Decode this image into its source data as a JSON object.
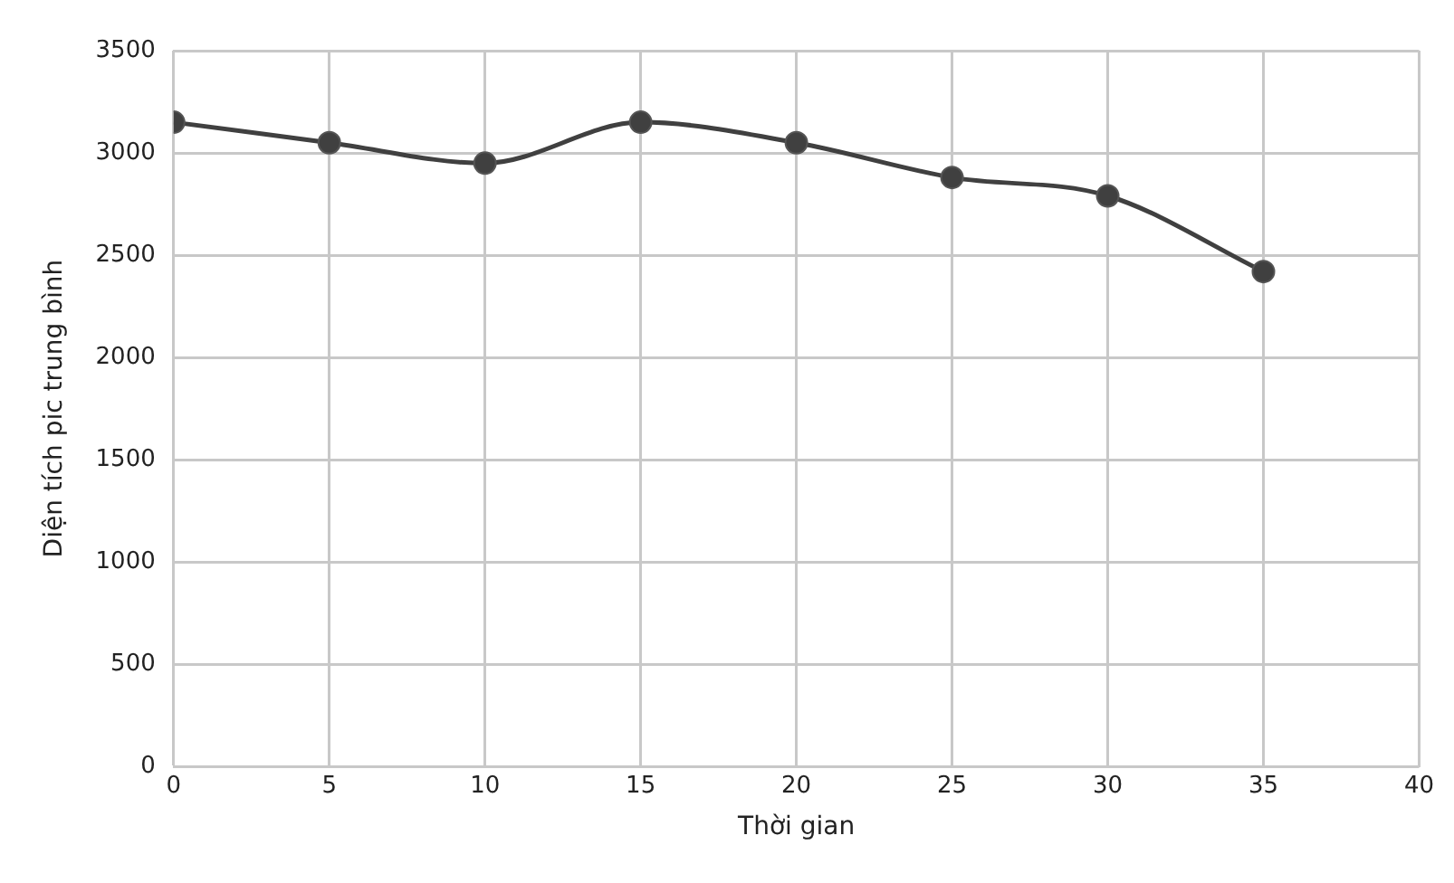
{
  "chart_data": {
    "type": "line",
    "xlabel": "Thời gian",
    "ylabel": "Diện tích pic trung bình",
    "x": [
      0,
      5,
      10,
      15,
      20,
      25,
      30,
      35
    ],
    "series": [
      {
        "color": "#404040",
        "values": [
          3150,
          3050,
          2950,
          3150,
          3050,
          2880,
          2790,
          2420
        ]
      }
    ],
    "xlim": [
      0,
      40
    ],
    "xticks": [
      0,
      5,
      10,
      15,
      20,
      25,
      30,
      35,
      40
    ],
    "ylim": [
      0,
      3500
    ],
    "yticks": [
      0,
      500,
      1000,
      1500,
      2000,
      2500,
      3000,
      3500
    ],
    "grid": true,
    "legend": false,
    "marker": "circle",
    "line_style": "solid"
  }
}
